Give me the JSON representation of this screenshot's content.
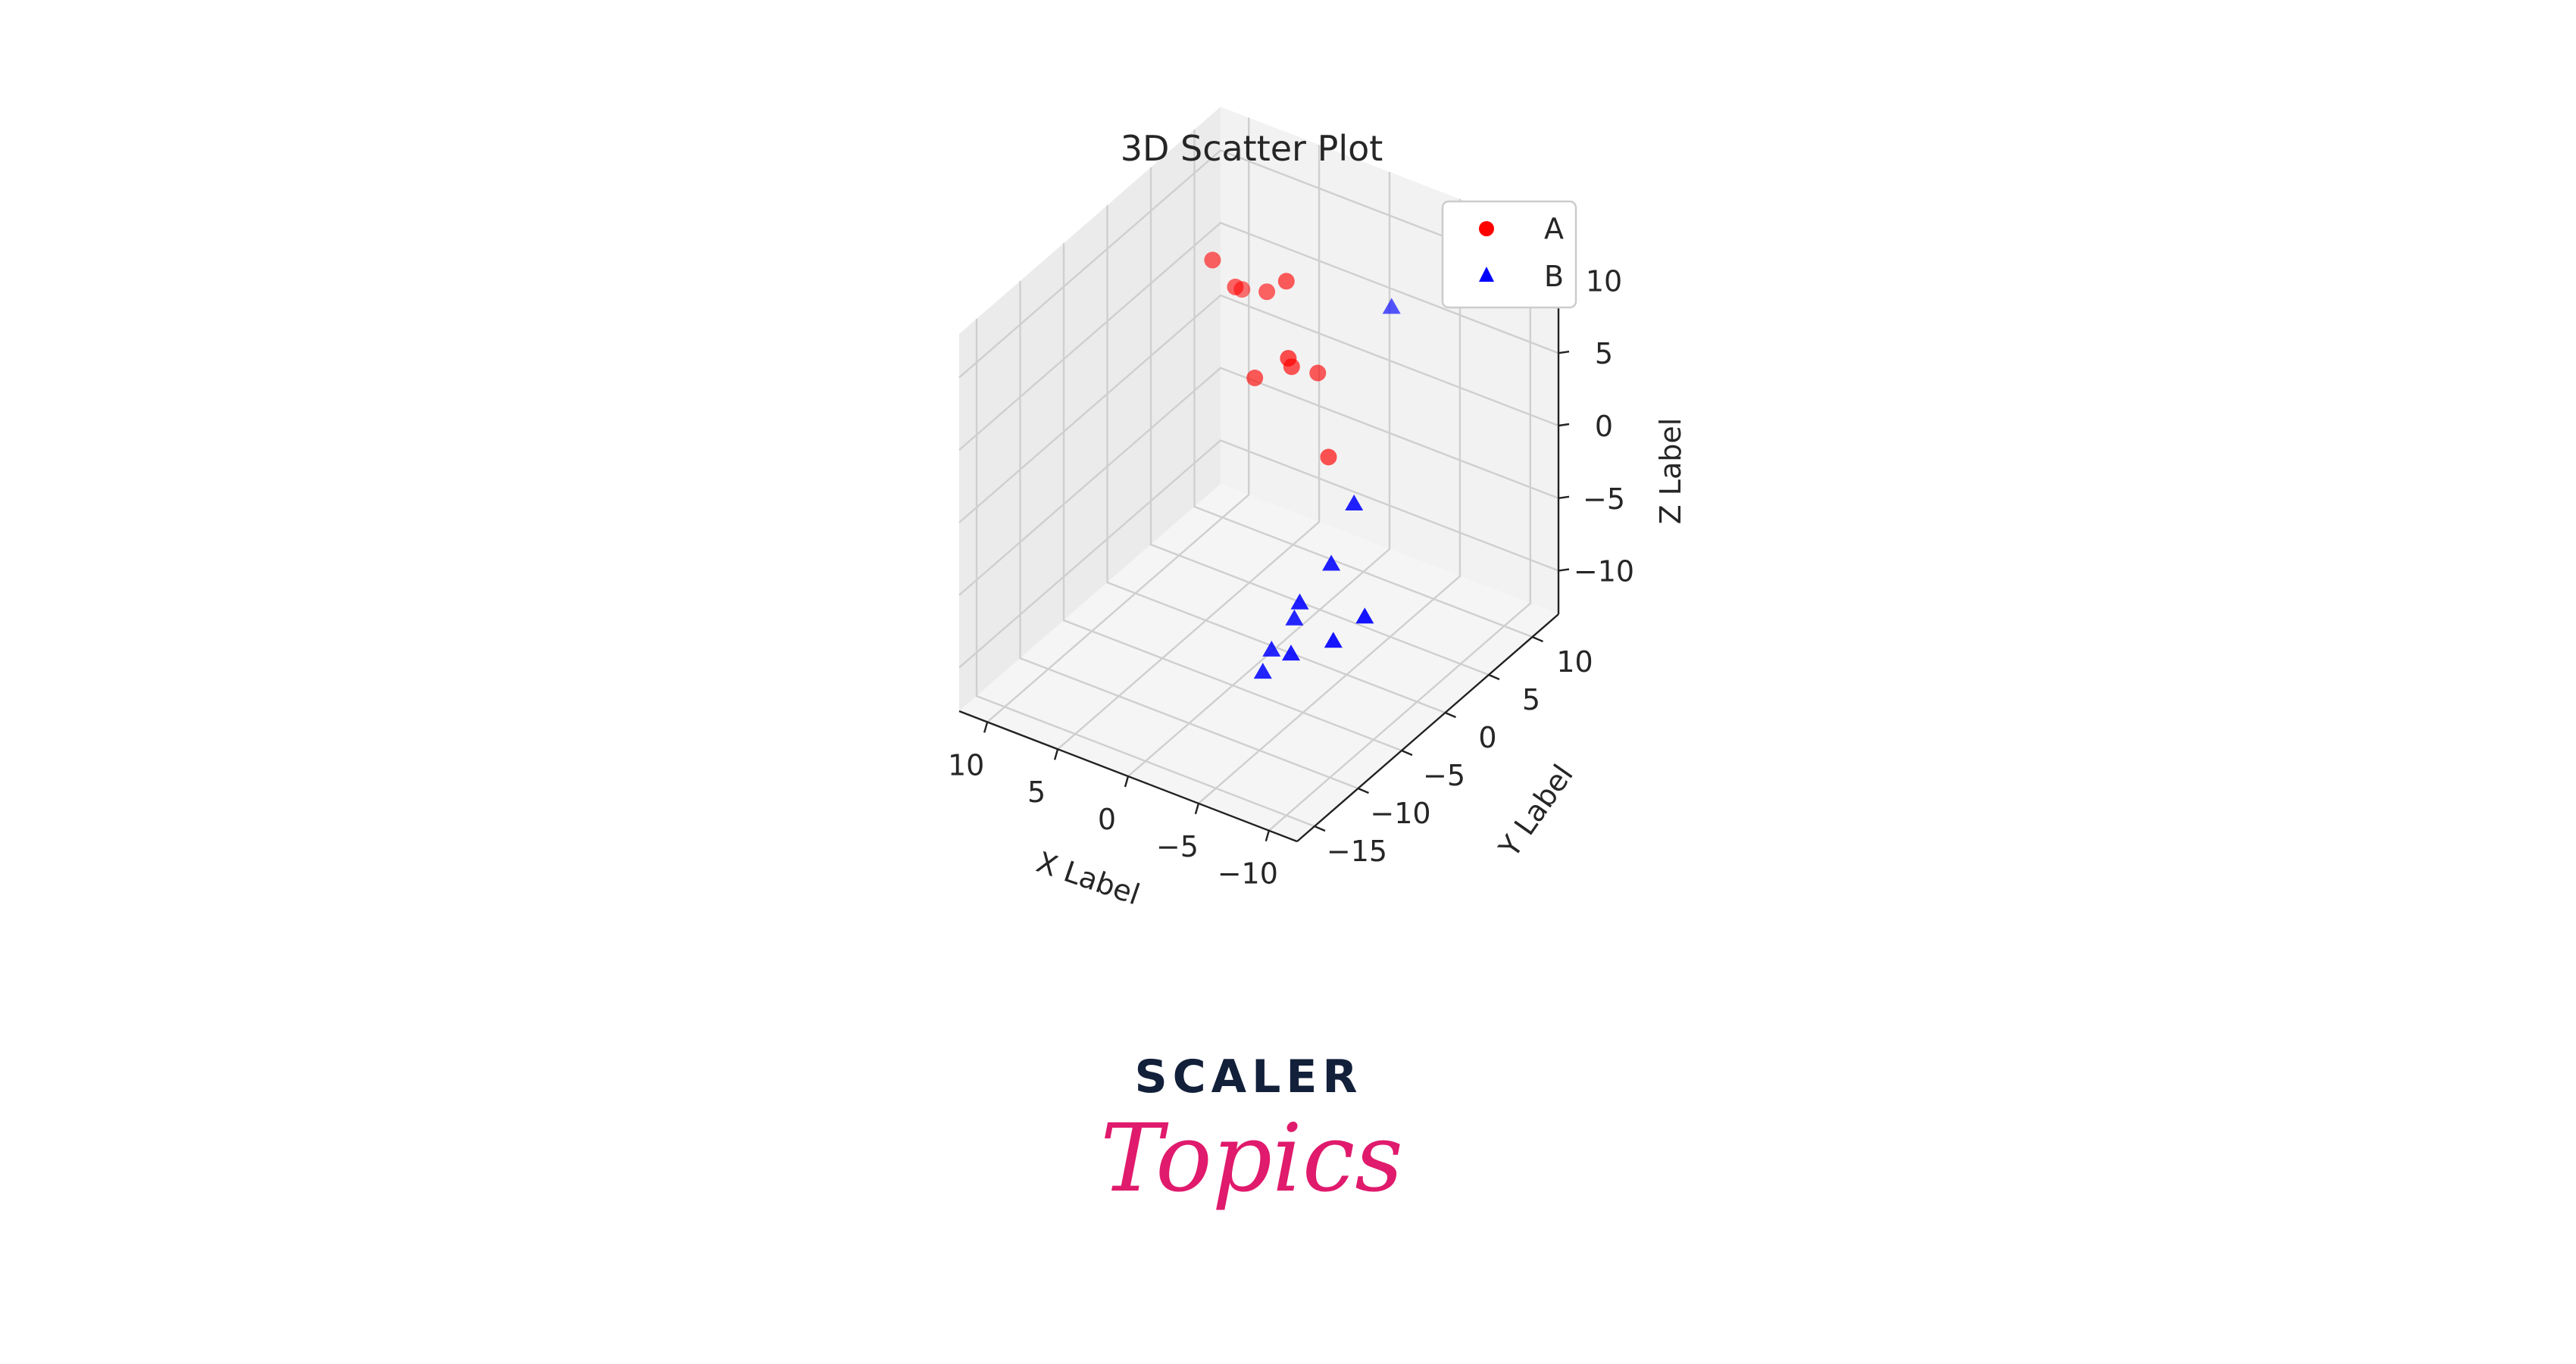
{
  "chart_data": {
    "type": "scatter",
    "projection": "3d",
    "title": "3D Scatter Plot",
    "xlabel": "X Label",
    "ylabel": "Y Label",
    "zlabel": "Z Label",
    "xlim": [
      -12,
      12
    ],
    "ylim": [
      -17,
      13
    ],
    "zlim": [
      -13,
      13
    ],
    "x_ticks": [
      "−10",
      "−5",
      "0",
      "5",
      "10"
    ],
    "y_ticks": [
      "−15",
      "−10",
      "−5",
      "0",
      "5",
      "10"
    ],
    "z_ticks": [
      "−10",
      "−5",
      "0",
      "5",
      "10"
    ],
    "x_tick_values": [
      -10,
      -5,
      0,
      5,
      10
    ],
    "y_tick_values": [
      -15,
      -10,
      -5,
      0,
      5,
      10
    ],
    "z_tick_values": [
      -10,
      -5,
      0,
      5,
      10
    ],
    "grid": true,
    "legend_position": "top-right",
    "series": [
      {
        "name": "A",
        "marker": "circle",
        "color": "#ff0000",
        "points": [
          {
            "x": 1,
            "y": 3,
            "z": 5
          },
          {
            "x": 2,
            "y": 5,
            "z": 3
          },
          {
            "x": 3,
            "y": 6,
            "z": 8
          },
          {
            "x": 4,
            "y": 4,
            "z": 2
          },
          {
            "x": 6,
            "y": 5,
            "z": 7
          },
          {
            "x": 5,
            "y": 7,
            "z": 6
          },
          {
            "x": 8,
            "y": 9,
            "z": 4
          },
          {
            "x": 2,
            "y": 8,
            "z": 1
          },
          {
            "x": 7,
            "y": 4,
            "z": 9
          },
          {
            "x": 0,
            "y": 6,
            "z": -3
          }
        ]
      },
      {
        "name": "B",
        "marker": "triangle",
        "color": "#0000ff",
        "points": [
          {
            "x": -9,
            "y": -8,
            "z": -5
          },
          {
            "x": -8,
            "y": -4,
            "z": 2
          },
          {
            "x": -6,
            "y": -8,
            "z": -7
          },
          {
            "x": -5,
            "y": -6,
            "z": -6
          },
          {
            "x": -7,
            "y": -5,
            "z": -2
          },
          {
            "x": -4,
            "y": -7,
            "z": -8
          },
          {
            "x": -2,
            "y": 10,
            "z": 6
          },
          {
            "x": -10,
            "y": -6,
            "z": -4
          },
          {
            "x": -6,
            "y": -7,
            "z": -4
          },
          {
            "x": -4,
            "y": -8,
            "z": -9
          }
        ]
      }
    ]
  },
  "logo": {
    "line1": "SCALER",
    "line2": "Topics"
  }
}
